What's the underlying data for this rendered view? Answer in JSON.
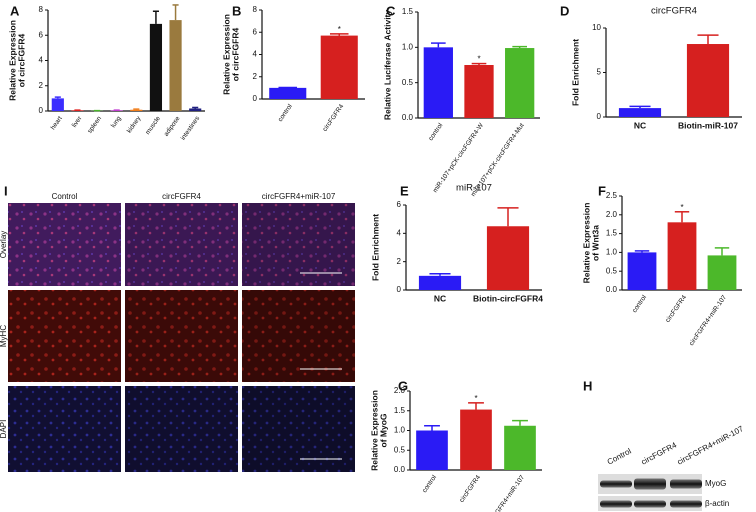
{
  "chart_data": [
    {
      "type": "bar",
      "panel": "A",
      "y_label": "Relative Expression\nof circFGFR4",
      "categories": [
        "heart",
        "liver",
        "spleen",
        "lung",
        "kidney",
        "muscle",
        "adipose",
        "intestines"
      ],
      "values": [
        1.0,
        0.05,
        0.02,
        0.05,
        0.1,
        6.9,
        7.2,
        0.2
      ],
      "errors": [
        0.1,
        0.02,
        0.01,
        0.02,
        0.05,
        1.0,
        1.2,
        0.08
      ],
      "colors": [
        "#3b2dff",
        "#e0201f",
        "#49b52a",
        "#c03cd0",
        "#f07d1a",
        "#111111",
        "#9a7a3e",
        "#202080"
      ],
      "ylim": [
        0,
        8
      ],
      "yticks": [
        0,
        2,
        4,
        6,
        8
      ]
    },
    {
      "type": "bar",
      "panel": "B",
      "y_label": "Relative Expression\nof circFGFR4",
      "categories": [
        "control",
        "circFGFR4"
      ],
      "values": [
        1.0,
        5.7
      ],
      "errors": [
        0.03,
        0.15
      ],
      "colors": [
        "#2a1bf5",
        "#d6201f"
      ],
      "annotation": {
        "category": "circFGFR4",
        "text": "*"
      },
      "ylim": [
        0,
        8
      ],
      "yticks": [
        0,
        2,
        4,
        6,
        8
      ]
    },
    {
      "type": "bar",
      "panel": "C",
      "y_label": "Relative Luciferase Activity",
      "categories": [
        "control",
        "miR-107+pCK-circFGFR4-W",
        "miR-107+pCK-circFGFR4-Mut"
      ],
      "values": [
        1.0,
        0.75,
        0.99
      ],
      "errors": [
        0.06,
        0.02,
        0.02
      ],
      "colors": [
        "#2a1bf5",
        "#d6201f",
        "#4cb82a"
      ],
      "annotation": {
        "category": "miR-107+pCK-circFGFR4-W",
        "text": "*"
      },
      "ylim": [
        0,
        1.5
      ],
      "yticks": [
        {
          "value": 0,
          "label": "0.0"
        },
        {
          "value": 0.5,
          "label": "0.5"
        },
        {
          "value": 1,
          "label": "1.0"
        },
        {
          "value": 1.5,
          "label": "1.5"
        }
      ]
    },
    {
      "type": "bar",
      "panel": "D",
      "title": "circFGFR4",
      "y_label": "Fold Enrichment",
      "categories": [
        "NC",
        "Biotin-miR-107"
      ],
      "values": [
        1.0,
        8.2
      ],
      "errors": [
        0.2,
        1.0
      ],
      "colors": [
        "#2a1bf5",
        "#d6201f"
      ],
      "ylim": [
        0,
        10
      ],
      "yticks": [
        0,
        5,
        10
      ]
    },
    {
      "type": "bar",
      "panel": "E",
      "title": "miR-107",
      "y_label": "Fold Enrichment",
      "categories": [
        "NC",
        "Biotin-circFGFR4"
      ],
      "values": [
        1.0,
        4.5
      ],
      "errors": [
        0.15,
        1.3
      ],
      "colors": [
        "#2a1bf5",
        "#d6201f"
      ],
      "ylim": [
        0,
        6
      ],
      "yticks": [
        0,
        2,
        4,
        6
      ]
    },
    {
      "type": "bar",
      "panel": "F",
      "y_label": "Relative Expression\nof Wnt3a",
      "categories": [
        "control",
        "circFGFR4",
        "circFGFR4+miR-107"
      ],
      "values": [
        1.0,
        1.8,
        0.92
      ],
      "errors": [
        0.04,
        0.28,
        0.2
      ],
      "colors": [
        "#2a1bf5",
        "#d6201f",
        "#4cb82a"
      ],
      "annotation": {
        "category": "circFGFR4",
        "text": "*"
      },
      "ylim": [
        0,
        2.5
      ],
      "yticks": [
        {
          "value": 0,
          "label": "0.0"
        },
        {
          "value": 0.5,
          "label": "0.5"
        },
        {
          "value": 1,
          "label": "1.0"
        },
        {
          "value": 1.5,
          "label": "1.5"
        },
        {
          "value": 2,
          "label": "2.0"
        },
        {
          "value": 2.5,
          "label": "2.5"
        }
      ]
    },
    {
      "type": "bar",
      "panel": "G",
      "y_label": "Relative Expression\nof MyoG",
      "categories": [
        "control",
        "circFGFR4",
        "circFGFR4+miR-107"
      ],
      "values": [
        1.0,
        1.53,
        1.12
      ],
      "errors": [
        0.12,
        0.17,
        0.13
      ],
      "colors": [
        "#2a1bf5",
        "#d6201f",
        "#4cb82a"
      ],
      "annotation": {
        "category": "circFGFR4",
        "text": "*"
      },
      "ylim": [
        0,
        2
      ],
      "yticks": [
        {
          "value": 0,
          "label": "0.0"
        },
        {
          "value": 0.5,
          "label": "0.5"
        },
        {
          "value": 1,
          "label": "1.0"
        },
        {
          "value": 1.5,
          "label": "1.5"
        },
        {
          "value": 2,
          "label": "2.0"
        }
      ]
    }
  ],
  "blot": {
    "panel": "H",
    "columns": [
      "Control",
      "circFGFR4",
      "circFGFR4+miR-107"
    ],
    "rows": [
      "MyoG",
      "β-actin"
    ]
  },
  "micrographs": {
    "panel": "I",
    "columns": [
      "Control",
      "circFGFR4",
      "circFGFR4+miR-107"
    ],
    "rows": [
      "Overlay",
      "MyHC",
      "DAPI"
    ]
  }
}
